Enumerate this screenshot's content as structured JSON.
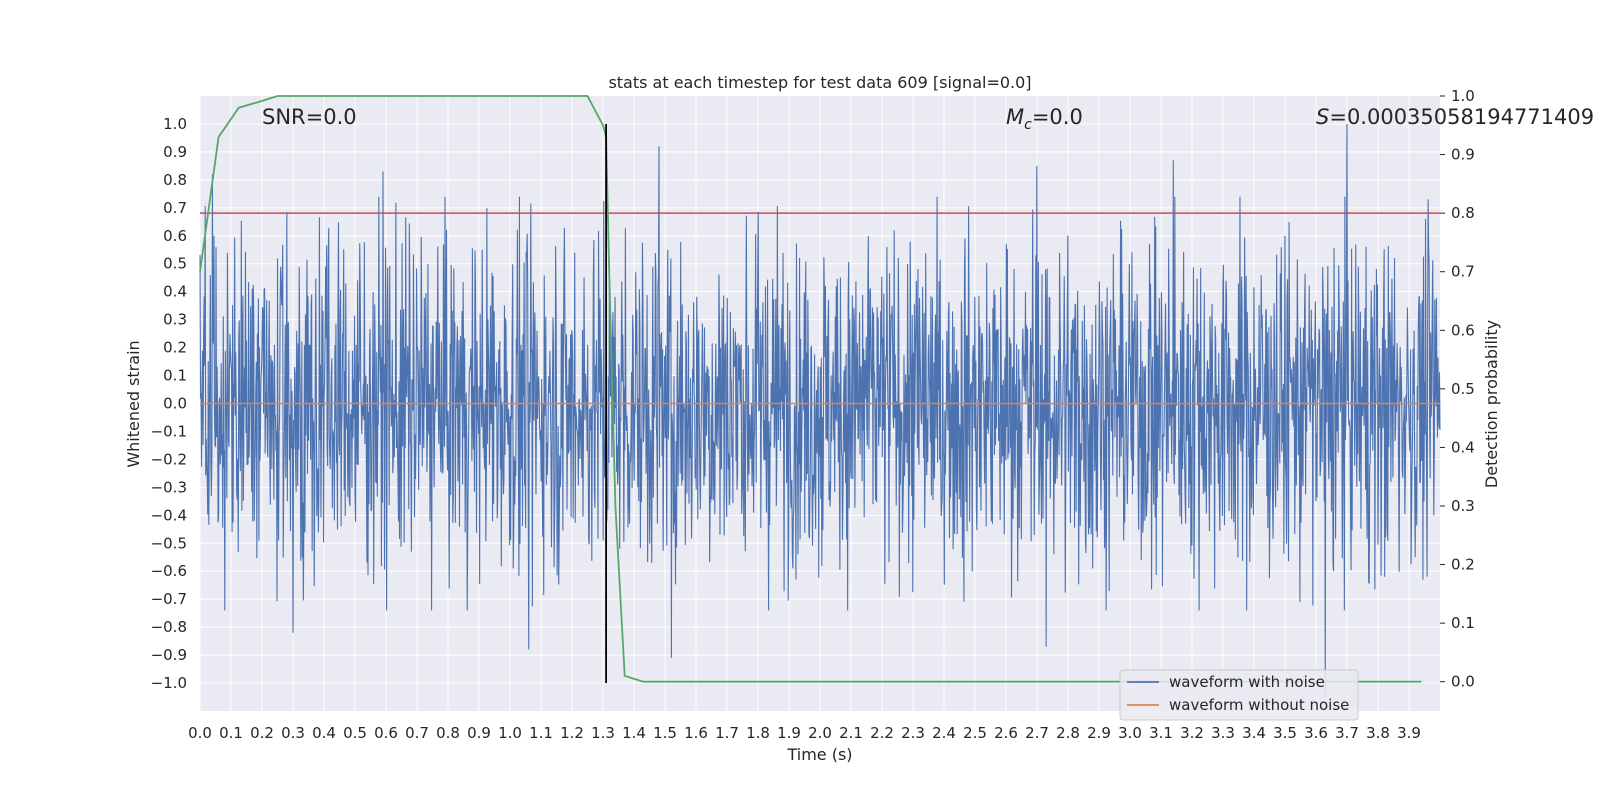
{
  "chart_data": {
    "type": "line",
    "title": "stats at each timestep for test data 609 [signal=0.0]",
    "xlabel": "Time (s)",
    "ylabel": "Whitened strain",
    "y2label": "Detection probability",
    "xlim": [
      0.0,
      4.0
    ],
    "ylim": [
      -1.1,
      1.1
    ],
    "y2lim": [
      -0.05,
      1.0
    ],
    "xticks": [
      "0.0",
      "0.1",
      "0.2",
      "0.3",
      "0.4",
      "0.5",
      "0.6",
      "0.7",
      "0.8",
      "0.9",
      "1.0",
      "1.1",
      "1.2",
      "1.3",
      "1.4",
      "1.5",
      "1.6",
      "1.7",
      "1.8",
      "1.9",
      "2.0",
      "2.1",
      "2.2",
      "2.3",
      "2.4",
      "2.5",
      "2.6",
      "2.7",
      "2.8",
      "2.9",
      "3.0",
      "3.1",
      "3.2",
      "3.3",
      "3.4",
      "3.5",
      "3.6",
      "3.7",
      "3.8",
      "3.9"
    ],
    "yticks": [
      "1.0",
      "0.9",
      "0.8",
      "0.7",
      "0.6",
      "0.5",
      "0.4",
      "0.3",
      "0.2",
      "0.1",
      "0.0",
      "−0.1",
      "−0.2",
      "−0.3",
      "−0.4",
      "−0.5",
      "−0.6",
      "−0.7",
      "−0.8",
      "−0.9",
      "−1.0"
    ],
    "y2ticks": [
      "1.0",
      "0.9",
      "0.8",
      "0.7",
      "0.6",
      "0.5",
      "0.4",
      "0.3",
      "0.2",
      "0.1",
      "0.0"
    ],
    "annotations": {
      "snr": "SNR=0.0",
      "mc_symbol": "M",
      "mc_sub": "c",
      "mc_value": "=0.0",
      "s_symbol": "S",
      "s_value": "=0.00035058194771409"
    },
    "series": [
      {
        "name": "waveform with noise",
        "color": "#4c72b0",
        "axis": "left",
        "description": "noise-like whitened strain, amplitude mostly within ±0.7, sampled densely over 0–4 s",
        "peaks": [
          {
            "x": 0.04,
            "y": 0.82
          },
          {
            "x": 0.3,
            "y": -0.82
          },
          {
            "x": 0.59,
            "y": 0.83
          },
          {
            "x": 1.06,
            "y": -0.88
          },
          {
            "x": 1.48,
            "y": 0.92
          },
          {
            "x": 1.52,
            "y": -0.91
          },
          {
            "x": 2.7,
            "y": 0.85
          },
          {
            "x": 2.73,
            "y": -0.87
          },
          {
            "x": 3.14,
            "y": 0.87
          },
          {
            "x": 3.63,
            "y": -1.05
          },
          {
            "x": 3.7,
            "y": 1.0
          }
        ]
      },
      {
        "name": "waveform without noise",
        "color": "#dd8452",
        "axis": "left",
        "x": [
          0.0,
          4.0
        ],
        "y": [
          0.0,
          0.0
        ]
      },
      {
        "name": "detection probability",
        "color": "#55a868",
        "axis": "right",
        "x": [
          0.0,
          0.06,
          0.125,
          0.19,
          0.25,
          0.31,
          0.5,
          0.75,
          1.0,
          1.25,
          1.3,
          1.31,
          1.32,
          1.34,
          1.37,
          1.43,
          1.5,
          2.0,
          2.5,
          3.0,
          3.5,
          3.94
        ],
        "y": [
          0.7,
          0.93,
          0.98,
          0.99,
          1.0,
          1.0,
          1.0,
          1.0,
          1.0,
          1.0,
          0.95,
          0.93,
          0.7,
          0.3,
          0.01,
          0.0,
          0.0,
          0.0,
          0.0,
          0.0,
          0.0,
          0.0
        ]
      }
    ],
    "threshold_line": {
      "y": 0.8,
      "color": "#c44e52"
    },
    "marker_line": {
      "x": 1.31,
      "y_from": -1.0,
      "y_to": 1.0,
      "color": "#000000"
    },
    "legend": {
      "position": "bottom-right",
      "entries": [
        {
          "label": "waveform with noise",
          "color": "#4c72b0"
        },
        {
          "label": "waveform without noise",
          "color": "#dd8452"
        }
      ]
    },
    "grid": true,
    "colors": {
      "background": "#eaeaf2",
      "grid": "#ffffff",
      "text": "#262626"
    }
  }
}
